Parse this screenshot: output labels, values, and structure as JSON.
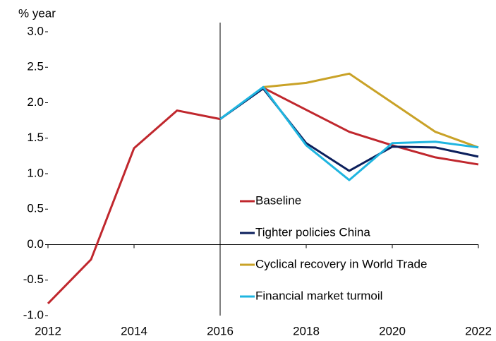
{
  "chart_data": {
    "type": "line",
    "y_label": "% year",
    "x": [
      2012,
      2013,
      2014,
      2015,
      2016,
      2017,
      2018,
      2019,
      2020,
      2021,
      2022
    ],
    "series": [
      {
        "name": "Baseline",
        "color": "#c0272d",
        "values": [
          -0.83,
          -0.21,
          1.36,
          1.89,
          1.77,
          2.21,
          1.9,
          1.59,
          1.4,
          1.23,
          1.13
        ]
      },
      {
        "name": "Tighter policies China",
        "color": "#0b1f5c",
        "values": [
          null,
          null,
          null,
          null,
          1.77,
          2.2,
          1.43,
          1.04,
          1.38,
          1.37,
          1.24
        ]
      },
      {
        "name": "Cyclical recovery in World Trade",
        "color": "#c9a227",
        "values": [
          null,
          null,
          null,
          null,
          null,
          2.22,
          2.28,
          2.41,
          2.0,
          1.59,
          1.37
        ]
      },
      {
        "name": "Financial market turmoil",
        "color": "#1fb5e0",
        "values": [
          null,
          null,
          null,
          null,
          1.77,
          2.22,
          1.4,
          0.91,
          1.43,
          1.45,
          1.37
        ]
      }
    ],
    "xlim": [
      2012,
      2022
    ],
    "xticks": [
      2012,
      2014,
      2016,
      2018,
      2020,
      2022
    ],
    "ylim": [
      -1,
      3
    ],
    "yticks": [
      {
        "value": -1,
        "label": "-1.0"
      },
      {
        "value": -0.5,
        "label": "-0.5"
      },
      {
        "value": 0,
        "label": "0.0"
      },
      {
        "value": 0.5,
        "label": "0.5"
      },
      {
        "value": 1,
        "label": "1.0"
      },
      {
        "value": 1.5,
        "label": "1.5"
      },
      {
        "value": 2,
        "label": "2.0"
      },
      {
        "value": 2.5,
        "label": "2.5"
      },
      {
        "value": 3,
        "label": "3.0"
      }
    ],
    "vline": 2016,
    "legend": "lower-right"
  }
}
